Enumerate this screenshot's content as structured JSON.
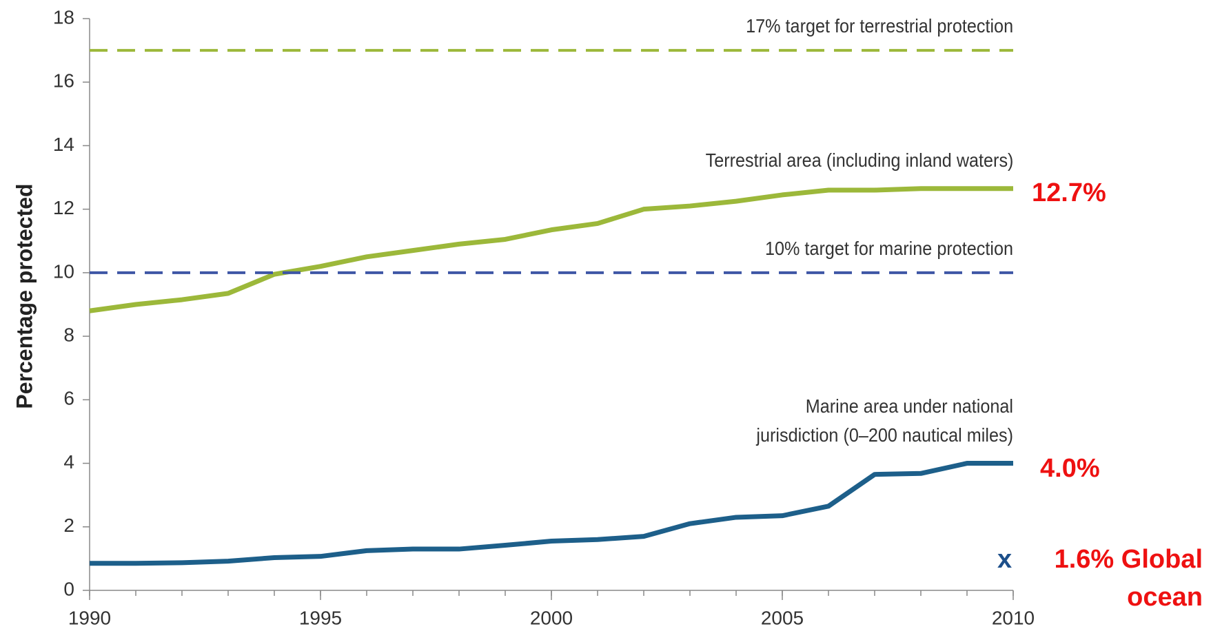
{
  "chart_data": {
    "type": "line",
    "y_label": "Percentage protected",
    "x": [
      1990,
      1991,
      1992,
      1993,
      1994,
      1995,
      1996,
      1997,
      1998,
      1999,
      2000,
      2001,
      2002,
      2003,
      2004,
      2005,
      2006,
      2007,
      2008,
      2009,
      2010
    ],
    "xlim": [
      1990,
      2010
    ],
    "xticks": [
      1990,
      1995,
      2000,
      2005,
      2010
    ],
    "ylim": [
      0,
      18
    ],
    "yticks": [
      0,
      2,
      4,
      6,
      8,
      10,
      12,
      14,
      16,
      18
    ],
    "series": [
      {
        "name": "17% target for terrestrial protection",
        "color": "#9cb83a",
        "dash": true,
        "values": [
          17,
          17,
          17,
          17,
          17,
          17,
          17,
          17,
          17,
          17,
          17,
          17,
          17,
          17,
          17,
          17,
          17,
          17,
          17,
          17,
          17
        ]
      },
      {
        "name": "Terrestrial area (including inland waters)",
        "color": "#9cb83a",
        "dash": false,
        "values": [
          8.8,
          9.0,
          9.15,
          9.35,
          9.95,
          10.2,
          10.5,
          10.7,
          10.9,
          11.05,
          11.35,
          11.55,
          12.0,
          12.1,
          12.25,
          12.45,
          12.6,
          12.6,
          12.65,
          12.65,
          12.65
        ]
      },
      {
        "name": "10% target for marine protection",
        "color": "#3e56a5",
        "dash": true,
        "values": [
          10,
          10,
          10,
          10,
          10,
          10,
          10,
          10,
          10,
          10,
          10,
          10,
          10,
          10,
          10,
          10,
          10,
          10,
          10,
          10,
          10
        ]
      },
      {
        "name": "Marine area under national\njurisdiction (0–200 nautical miles)",
        "color": "#1d5f8a",
        "dash": false,
        "values": [
          0.85,
          0.85,
          0.87,
          0.92,
          1.03,
          1.07,
          1.25,
          1.3,
          1.3,
          1.42,
          1.55,
          1.6,
          1.7,
          2.1,
          2.3,
          2.35,
          2.65,
          3.65,
          3.68,
          4.0,
          4.0
        ]
      }
    ],
    "annotations": [
      {
        "text": "12.7%",
        "color": "#ee1111"
      },
      {
        "text": "4.0%",
        "color": "#ee1111"
      },
      {
        "text": "x",
        "color": "#1d4f8a"
      },
      {
        "text": "1.6% Global\nocean",
        "color": "#ee1111"
      }
    ]
  }
}
